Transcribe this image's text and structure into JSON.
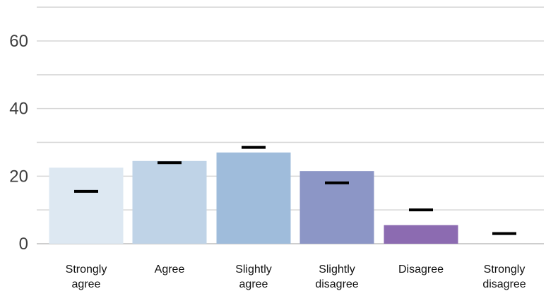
{
  "chart_data": {
    "type": "bar",
    "title": "",
    "xlabel": "",
    "ylabel": "",
    "ylim": [
      0,
      70
    ],
    "y_ticks": [
      0,
      20,
      40,
      60
    ],
    "grid": true,
    "categories": [
      "Strongly agree",
      "Agree",
      "Slightly agree",
      "Slightly disagree",
      "Disagree",
      "Strongly disagree"
    ],
    "category_labels": [
      [
        "Strongly",
        "agree"
      ],
      [
        "Agree"
      ],
      [
        "Slightly",
        "agree"
      ],
      [
        "Slightly",
        "disagree"
      ],
      [
        "Disagree"
      ],
      [
        "Strongly",
        "disagree"
      ]
    ],
    "series": [
      {
        "type": "bar",
        "values": [
          22.5,
          24.5,
          27,
          21.5,
          5.5,
          0
        ],
        "colors": [
          "#dde8f2",
          "#bfd3e7",
          "#9fbcdb",
          "#8c96c6",
          "#8c6bb1",
          "#6e4b9e"
        ]
      },
      {
        "type": "marker",
        "values": [
          15.5,
          24,
          28.5,
          18,
          10,
          3
        ],
        "color": "#000000"
      }
    ]
  }
}
